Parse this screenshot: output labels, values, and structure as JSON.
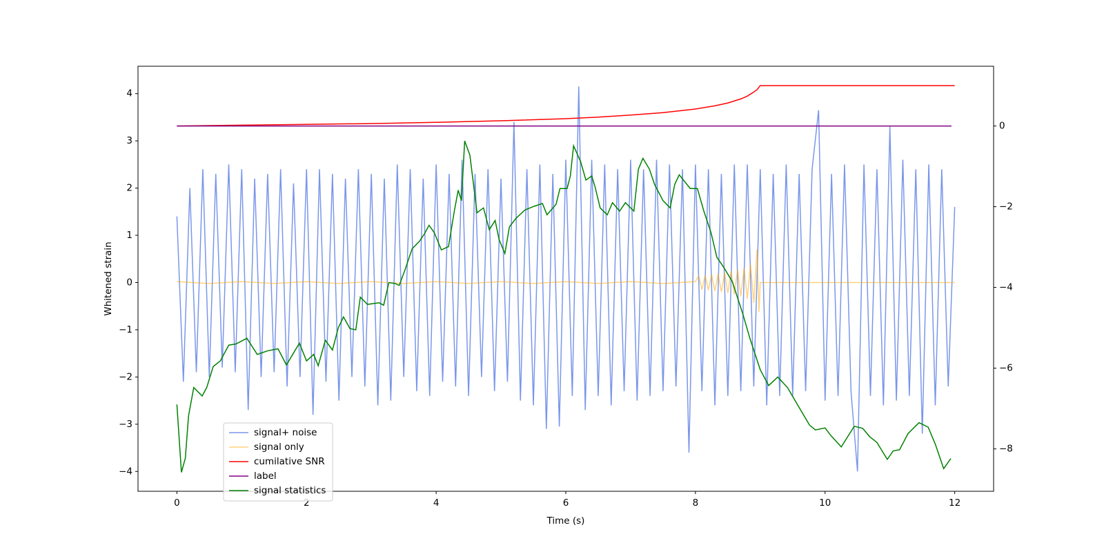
{
  "chart_data": {
    "type": "line",
    "xlabel": "Time (s)",
    "ylabel": "Whitened strain",
    "xlim": [
      -0.6,
      12.6
    ],
    "xticks": [
      0,
      2,
      4,
      6,
      8,
      10,
      12
    ],
    "ylim": [
      -4.42,
      4.58
    ],
    "yticks": [
      {
        "value": -4,
        "label": "−4"
      },
      {
        "value": -3,
        "label": "−3"
      },
      {
        "value": -2,
        "label": "−2"
      },
      {
        "value": -1,
        "label": "−1"
      },
      0,
      1,
      2,
      3,
      4
    ],
    "y2lim": [
      -9.05,
      1.48
    ],
    "y2ticks": [
      {
        "value": -8,
        "label": "−8"
      },
      {
        "value": -6,
        "label": "−6"
      },
      {
        "value": -4,
        "label": "−4"
      },
      {
        "value": -2,
        "label": "−2"
      },
      0
    ],
    "legend": "lower left",
    "series": [
      {
        "name": "signal+ noise",
        "color": "#4169e1",
        "opacity": 0.7,
        "x": [
          0,
          0.1,
          0.2,
          0.3,
          0.4,
          0.5,
          0.6,
          0.7,
          0.8,
          0.9,
          1,
          1.1,
          1.2,
          1.3,
          1.4,
          1.5,
          1.6,
          1.7,
          1.8,
          1.9,
          2,
          2.1,
          2.2,
          2.3,
          2.4,
          2.5,
          2.6,
          2.7,
          2.8,
          2.9,
          3,
          3.1,
          3.2,
          3.3,
          3.4,
          3.5,
          3.6,
          3.7,
          3.8,
          3.9,
          4,
          4.1,
          4.2,
          4.3,
          4.4,
          4.5,
          4.6,
          4.7,
          4.8,
          4.9,
          5,
          5.1,
          5.2,
          5.3,
          5.4,
          5.5,
          5.6,
          5.7,
          5.8,
          5.9,
          6,
          6.1,
          6.2,
          6.3,
          6.4,
          6.5,
          6.6,
          6.7,
          6.8,
          6.9,
          7,
          7.1,
          7.2,
          7.3,
          7.4,
          7.5,
          7.6,
          7.7,
          7.8,
          7.9,
          8,
          8.1,
          8.2,
          8.3,
          8.4,
          8.5,
          8.6,
          8.7,
          8.8,
          8.9,
          9,
          9.1,
          9.2,
          9.3,
          9.4,
          9.5,
          9.6,
          9.7,
          9.8,
          9.9,
          10,
          10.1,
          10.2,
          10.3,
          10.4,
          10.5,
          10.6,
          10.7,
          10.8,
          10.9,
          11,
          11.1,
          11.2,
          11.3,
          11.4,
          11.5,
          11.6,
          11.7,
          11.8,
          11.9,
          12
        ],
        "values": [
          1.4,
          -2.1,
          2.0,
          -1.9,
          2.4,
          -2.0,
          2.3,
          -1.8,
          2.5,
          -1.9,
          2.4,
          -2.7,
          2.2,
          -2.0,
          2.3,
          -1.9,
          2.4,
          -2.2,
          2.1,
          -2.0,
          2.4,
          -2.8,
          2.4,
          -2.1,
          2.3,
          -2.5,
          2.2,
          -2.0,
          2.4,
          -2.2,
          2.3,
          -2.6,
          2.2,
          -2.5,
          2.5,
          -2.0,
          2.4,
          -2.3,
          2.2,
          -2.4,
          2.5,
          -2.1,
          2.3,
          -2.2,
          2.6,
          -2.4,
          2.3,
          -2.0,
          2.4,
          -2.3,
          2.2,
          -2.1,
          3.4,
          -2.5,
          2.4,
          -2.6,
          2.5,
          -3.1,
          2.3,
          -3.05,
          2.6,
          -2.4,
          4.15,
          -2.7,
          2.6,
          -2.4,
          2.5,
          -2.6,
          2.4,
          -2.3,
          2.6,
          -2.5,
          2.4,
          -2.4,
          2.6,
          -2.3,
          2.5,
          -2.2,
          2.4,
          -3.6,
          2.5,
          -2.3,
          2.4,
          -2.6,
          2.3,
          -2.4,
          2.5,
          -2.3,
          2.5,
          -2.2,
          2.4,
          -2.6,
          2.3,
          -2.4,
          2.5,
          -2.4,
          2.3,
          -2.3,
          2.4,
          3.65,
          -2.5,
          2.3,
          -2.4,
          2.5,
          -2.3,
          -4.0,
          2.5,
          -2.4,
          2.4,
          -2.6,
          3.3,
          -2.5,
          2.6,
          -2.4,
          2.4,
          -3.2,
          2.5,
          -2.6,
          2.4,
          -2.2,
          1.6
        ]
      },
      {
        "name": "signal only",
        "color": "#ffa500",
        "opacity": 0.5,
        "x": [
          0,
          0.5,
          1,
          1.5,
          2,
          2.5,
          3,
          3.5,
          4,
          4.5,
          5,
          5.5,
          6,
          6.5,
          7,
          7.5,
          8,
          8.05,
          8.1,
          8.15,
          8.2,
          8.25,
          8.3,
          8.35,
          8.4,
          8.45,
          8.5,
          8.55,
          8.6,
          8.65,
          8.7,
          8.75,
          8.8,
          8.85,
          8.9,
          8.95,
          8.98,
          9.0,
          12
        ],
        "values": [
          0.02,
          -0.02,
          0.02,
          -0.02,
          0.02,
          -0.02,
          0.02,
          -0.02,
          0.02,
          -0.02,
          0.02,
          -0.02,
          0.02,
          -0.02,
          0.02,
          -0.02,
          0.02,
          0.14,
          -0.15,
          0.15,
          -0.16,
          0.17,
          -0.18,
          0.19,
          -0.2,
          0.21,
          -0.22,
          0.24,
          -0.25,
          0.27,
          -0.29,
          0.31,
          -0.34,
          0.38,
          -0.43,
          0.7,
          -0.62,
          0,
          0
        ]
      },
      {
        "name": "cumilative SNR",
        "color": "#ff0000",
        "axis": "y2",
        "x": [
          0,
          1,
          2,
          3,
          4,
          5,
          6,
          6.5,
          7,
          7.5,
          8,
          8.3,
          8.5,
          8.7,
          8.8,
          8.9,
          8.95,
          9.0,
          12
        ],
        "values": [
          0,
          0.02,
          0.04,
          0.06,
          0.09,
          0.13,
          0.18,
          0.22,
          0.27,
          0.33,
          0.42,
          0.5,
          0.57,
          0.67,
          0.74,
          0.84,
          0.9,
          1.0,
          1.0
        ]
      },
      {
        "name": "label",
        "color": "#800080",
        "axis": "y2",
        "x": [
          0,
          11.95
        ],
        "values": [
          0,
          0
        ]
      },
      {
        "name": "signal statistics",
        "color": "#008000",
        "axis": "y2",
        "x": [
          0,
          0.07,
          0.13,
          0.18,
          0.26,
          0.39,
          0.46,
          0.56,
          0.67,
          0.8,
          0.91,
          1.08,
          1.24,
          1.4,
          1.56,
          1.69,
          1.89,
          2.0,
          2.11,
          2.18,
          2.29,
          2.4,
          2.49,
          2.57,
          2.67,
          2.76,
          2.83,
          2.94,
          3.12,
          3.19,
          3.27,
          3.36,
          3.43,
          3.52,
          3.63,
          3.74,
          3.82,
          3.89,
          3.97,
          4.08,
          4.19,
          4.28,
          4.34,
          4.39,
          4.44,
          4.52,
          4.63,
          4.73,
          4.82,
          4.91,
          4.97,
          5.06,
          5.13,
          5.23,
          5.37,
          5.51,
          5.64,
          5.71,
          5.85,
          5.91,
          6.02,
          6.07,
          6.12,
          6.23,
          6.31,
          6.4,
          6.45,
          6.53,
          6.64,
          6.72,
          6.83,
          6.92,
          7.05,
          7.12,
          7.19,
          7.29,
          7.37,
          7.5,
          7.61,
          7.68,
          7.75,
          7.92,
          8.03,
          8.13,
          8.24,
          8.33,
          8.44,
          8.57,
          8.73,
          8.84,
          9.0,
          9.13,
          9.27,
          9.42,
          9.58,
          9.76,
          9.85,
          10.0,
          10.09,
          10.25,
          10.45,
          10.58,
          10.69,
          10.8,
          10.96,
          11.05,
          11.15,
          11.28,
          11.45,
          11.59,
          11.7,
          11.83,
          11.94
        ],
        "values": [
          -6.9,
          -8.58,
          -8.23,
          -7.18,
          -6.48,
          -6.69,
          -6.48,
          -5.96,
          -5.82,
          -5.43,
          -5.4,
          -5.26,
          -5.66,
          -5.57,
          -5.52,
          -5.92,
          -5.38,
          -5.82,
          -5.66,
          -5.94,
          -5.31,
          -5.55,
          -5.0,
          -4.73,
          -5.02,
          -5.05,
          -4.24,
          -4.42,
          -4.38,
          -4.44,
          -3.88,
          -3.9,
          -3.95,
          -3.56,
          -3.04,
          -2.86,
          -2.67,
          -2.46,
          -2.64,
          -3.07,
          -2.99,
          -2.11,
          -1.59,
          -1.85,
          -0.37,
          -0.72,
          -2.15,
          -2.03,
          -2.57,
          -2.34,
          -2.81,
          -3.16,
          -2.5,
          -2.29,
          -2.08,
          -1.99,
          -1.92,
          -2.2,
          -1.94,
          -1.55,
          -1.55,
          -1.24,
          -0.49,
          -0.89,
          -1.34,
          -1.24,
          -1.5,
          -2.03,
          -2.2,
          -1.9,
          -2.11,
          -1.9,
          -2.11,
          -1.07,
          -0.8,
          -1.07,
          -1.45,
          -1.85,
          -2.03,
          -1.45,
          -1.21,
          -1.55,
          -1.55,
          -2.11,
          -2.64,
          -3.25,
          -3.51,
          -3.86,
          -4.65,
          -5.26,
          -6.04,
          -6.43,
          -6.22,
          -6.48,
          -6.92,
          -7.41,
          -7.53,
          -7.48,
          -7.67,
          -7.95,
          -7.44,
          -7.49,
          -7.7,
          -7.84,
          -8.26,
          -8.05,
          -8.02,
          -7.62,
          -7.35,
          -7.46,
          -7.88,
          -8.49,
          -8.24
        ]
      }
    ]
  }
}
